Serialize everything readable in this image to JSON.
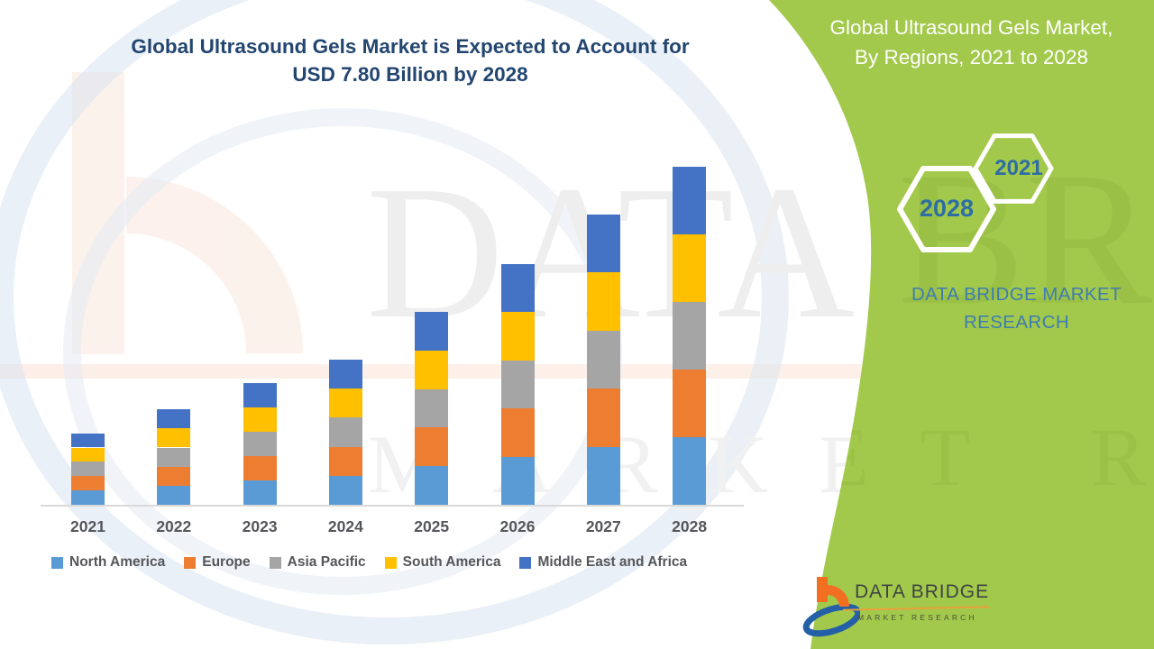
{
  "header": {
    "title_line1": "Global Ultrasound Gels Market is Expected to Account for",
    "title_line2": "USD 7.80 Billion by 2028"
  },
  "sidebar": {
    "heading_line1": "Global Ultrasound Gels Market,",
    "heading_line2": "By Regions, 2021 to 2028",
    "hexagon_years": [
      "2021",
      "2028"
    ],
    "brand_line1": "DATA BRIDGE MARKET",
    "brand_line2": "RESEARCH"
  },
  "footer_logo": {
    "title": "DATA BRIDGE",
    "subtitle": "MARKET RESEARCH"
  },
  "watermark": {
    "line1": "DATA BRIDGE",
    "line2": "MARKET RESEARCH"
  },
  "colors": {
    "panel_green": "#a2c94b",
    "panel_watermark_green": "#97bd41",
    "title_navy": "#234670",
    "hexagon_year_blue": "#2e6da4",
    "sidebar_brand_blue": "#3e7cb1",
    "axis_text_gray": "#55565a",
    "axis_line_gray": "#d9d9d9",
    "logo_orange": "#f26f21",
    "logo_blue": "#2460a7"
  },
  "chart_data": {
    "type": "bar",
    "stacked": true,
    "title": "Global Ultrasound Gels Market is Expected to Account for USD 7.80 Billion by 2028",
    "unit": "USD Billion",
    "categories": [
      "2021",
      "2022",
      "2023",
      "2024",
      "2025",
      "2026",
      "2027",
      "2028"
    ],
    "series": [
      {
        "name": "North America",
        "color": "#5b9bd5",
        "values": [
          0.33,
          0.44,
          0.56,
          0.67,
          0.89,
          1.11,
          1.34,
          1.56
        ]
      },
      {
        "name": "Europe",
        "color": "#ed7d31",
        "values": [
          0.33,
          0.44,
          0.56,
          0.67,
          0.89,
          1.11,
          1.34,
          1.56
        ]
      },
      {
        "name": "Asia Pacific",
        "color": "#a5a5a5",
        "values": [
          0.33,
          0.44,
          0.56,
          0.67,
          0.89,
          1.11,
          1.34,
          1.56
        ]
      },
      {
        "name": "South America",
        "color": "#ffc000",
        "values": [
          0.33,
          0.44,
          0.56,
          0.67,
          0.89,
          1.11,
          1.34,
          1.56
        ]
      },
      {
        "name": "Middle East and Africa",
        "color": "#4472c4",
        "values": [
          0.33,
          0.44,
          0.56,
          0.67,
          0.89,
          1.11,
          1.34,
          1.56
        ]
      }
    ],
    "totals": [
      1.65,
      2.2,
      2.8,
      3.35,
      4.45,
      5.55,
      6.7,
      7.8
    ],
    "ylim": [
      0,
      7.8
    ],
    "grid": false,
    "y_axis_visible": false,
    "x_axis_visible": true,
    "legend_position": "bottom"
  }
}
